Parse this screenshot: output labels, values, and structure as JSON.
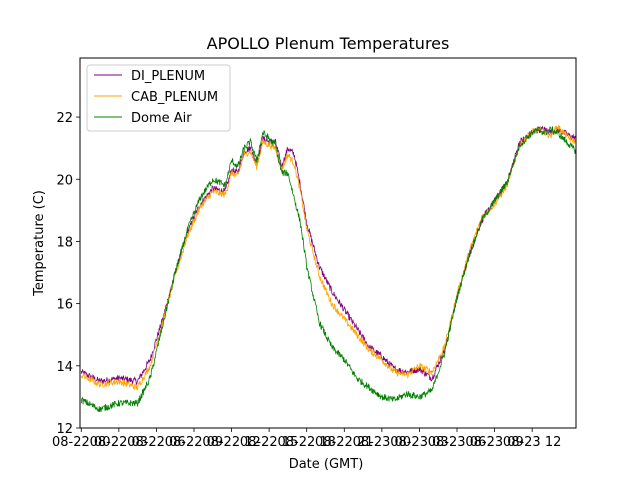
{
  "chart_data": {
    "type": "line",
    "title": "APOLLO Plenum Temperatures",
    "xlabel": "Date (GMT)",
    "ylabel": "Temperature (C)",
    "xlim": [
      -0.1,
      39.5
    ],
    "ylim": [
      12.0,
      23.9
    ],
    "x_unit": "hours since 08-22 00",
    "xticks": [
      0,
      3,
      6,
      9,
      12,
      15,
      18,
      21,
      24,
      27,
      30,
      33,
      36
    ],
    "xtick_labels": [
      "08-22 00",
      "08-22 03",
      "08-22 06",
      "08-22 09",
      "08-22 12",
      "08-22 15",
      "08-22 18",
      "08-22 21",
      "08-23 00",
      "08-23 03",
      "08-23 06",
      "08-23 09",
      "08-23 12"
    ],
    "yticks": [
      12,
      14,
      16,
      18,
      20,
      22
    ],
    "ytick_labels": [
      "12",
      "14",
      "16",
      "18",
      "20",
      "22"
    ],
    "grid": false,
    "legend": "upper left",
    "series": [
      {
        "name": "DI_PLENUM",
        "color": "#800080",
        "x": [
          0,
          1.5,
          3,
          4.5,
          5.5,
          6.5,
          7.5,
          8.5,
          9.5,
          10.5,
          11.5,
          12.0,
          12.5,
          13.0,
          13.5,
          14.0,
          14.5,
          15.0,
          15.5,
          16.0,
          16.5,
          17.0,
          17.5,
          18.0,
          19.0,
          20.0,
          21.0,
          22.0,
          23.0,
          24.0,
          25.0,
          26.0,
          27.0,
          28.0,
          29.0,
          30.0,
          31.0,
          32.0,
          33.0,
          34.0,
          35.0,
          36.0,
          36.5,
          37.0,
          37.5,
          38.0,
          38.5,
          39.0,
          39.5
        ],
        "y": [
          13.8,
          13.5,
          13.6,
          13.5,
          14.2,
          15.5,
          17.0,
          18.3,
          19.2,
          19.7,
          19.6,
          20.3,
          20.2,
          20.9,
          21.0,
          20.5,
          21.3,
          21.2,
          21.2,
          20.4,
          21.0,
          20.8,
          19.8,
          18.6,
          17.2,
          16.4,
          15.8,
          15.2,
          14.6,
          14.3,
          13.9,
          13.8,
          13.9,
          13.6,
          14.5,
          16.2,
          17.6,
          18.7,
          19.3,
          19.9,
          21.2,
          21.5,
          21.6,
          21.6,
          21.5,
          21.6,
          21.5,
          21.4,
          21.3
        ]
      },
      {
        "name": "CAB_PLENUM",
        "color": "#ffa500",
        "x": [
          0,
          1.5,
          3,
          4.5,
          5.5,
          6.5,
          7.5,
          8.5,
          9.5,
          10.5,
          11.5,
          12.0,
          12.5,
          13.0,
          13.5,
          14.0,
          14.5,
          15.0,
          15.5,
          16.0,
          16.5,
          17.0,
          17.5,
          18.0,
          19.0,
          20.0,
          21.0,
          22.0,
          23.0,
          24.0,
          25.0,
          26.0,
          27.0,
          28.0,
          29.0,
          30.0,
          31.0,
          32.0,
          33.0,
          34.0,
          35.0,
          36.0,
          36.5,
          37.0,
          37.5,
          38.0,
          38.5,
          39.0,
          39.5
        ],
        "y": [
          13.7,
          13.4,
          13.5,
          13.3,
          14.0,
          15.4,
          16.9,
          18.2,
          19.1,
          19.6,
          19.5,
          20.2,
          20.1,
          20.8,
          20.9,
          20.4,
          21.2,
          21.1,
          21.0,
          20.3,
          20.8,
          20.5,
          19.6,
          18.4,
          16.9,
          16.0,
          15.5,
          15.0,
          14.5,
          14.2,
          13.8,
          13.7,
          14.0,
          13.8,
          14.6,
          16.3,
          17.7,
          18.8,
          19.2,
          19.8,
          21.1,
          21.5,
          21.6,
          21.5,
          21.4,
          21.7,
          21.5,
          21.3,
          21.2
        ]
      },
      {
        "name": "Dome Air",
        "color": "#008000",
        "x": [
          0,
          1.5,
          3,
          4.5,
          5.5,
          6.5,
          7.5,
          8.5,
          9.5,
          10.5,
          11.5,
          12.0,
          12.5,
          13.0,
          13.5,
          14.0,
          14.5,
          15.0,
          15.5,
          16.0,
          16.5,
          17.0,
          17.5,
          18.0,
          19.0,
          20.0,
          21.0,
          22.0,
          23.0,
          24.0,
          25.0,
          26.0,
          27.0,
          28.0,
          29.0,
          30.0,
          31.0,
          32.0,
          33.0,
          34.0,
          35.0,
          36.0,
          36.5,
          37.0,
          37.5,
          38.0,
          38.5,
          39.0,
          39.5
        ],
        "y": [
          12.9,
          12.6,
          12.8,
          12.8,
          13.6,
          15.3,
          17.0,
          18.4,
          19.4,
          20.0,
          19.8,
          20.6,
          20.4,
          21.0,
          21.2,
          20.6,
          21.5,
          21.3,
          21.1,
          20.2,
          20.2,
          19.4,
          18.6,
          17.2,
          15.4,
          14.6,
          14.2,
          13.6,
          13.3,
          13.0,
          12.9,
          13.1,
          13.0,
          13.2,
          14.4,
          16.2,
          17.6,
          18.7,
          19.3,
          19.9,
          21.1,
          21.5,
          21.6,
          21.5,
          21.6,
          21.5,
          21.3,
          21.1,
          20.9
        ]
      }
    ]
  }
}
